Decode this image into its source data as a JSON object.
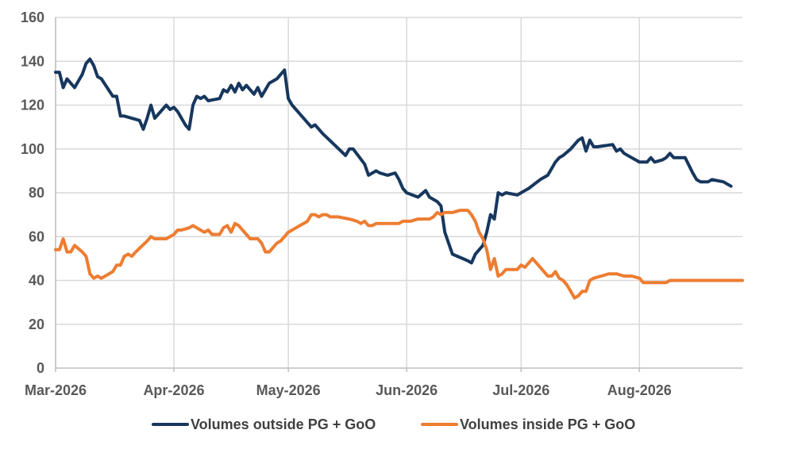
{
  "chart_data": {
    "type": "line",
    "title": "",
    "xlabel": "",
    "ylabel": "",
    "ylim": [
      0,
      160
    ],
    "yticks": [
      0,
      20,
      40,
      60,
      80,
      100,
      120,
      140,
      160
    ],
    "xlim": [
      "2026-03-01",
      "2026-08-28"
    ],
    "xticks": [
      {
        "date": "2026-03-01",
        "label": "Mar-2026"
      },
      {
        "date": "2026-04-01",
        "label": "Apr-2026"
      },
      {
        "date": "2026-05-01",
        "label": "May-2026"
      },
      {
        "date": "2026-06-01",
        "label": "Jun-2026"
      },
      {
        "date": "2026-07-01",
        "label": "Jul-2026"
      },
      {
        "date": "2026-08-01",
        "label": "Aug-2026"
      }
    ],
    "grid": true,
    "legend_position": "bottom",
    "series": [
      {
        "name": "Volumes outside PG + GoO",
        "color": "#17375e",
        "points": [
          [
            "2026-03-01",
            135
          ],
          [
            "2026-03-02",
            135
          ],
          [
            "2026-03-03",
            128
          ],
          [
            "2026-03-04",
            132
          ],
          [
            "2026-03-06",
            128
          ],
          [
            "2026-03-08",
            134
          ],
          [
            "2026-03-09",
            139
          ],
          [
            "2026-03-10",
            141
          ],
          [
            "2026-03-11",
            138
          ],
          [
            "2026-03-12",
            133
          ],
          [
            "2026-03-13",
            132
          ],
          [
            "2026-03-16",
            124
          ],
          [
            "2026-03-17",
            124
          ],
          [
            "2026-03-18",
            115
          ],
          [
            "2026-03-19",
            115
          ],
          [
            "2026-03-23",
            113
          ],
          [
            "2026-03-24",
            109
          ],
          [
            "2026-03-25",
            114
          ],
          [
            "2026-03-26",
            120
          ],
          [
            "2026-03-27",
            114
          ],
          [
            "2026-03-30",
            120
          ],
          [
            "2026-03-31",
            118
          ],
          [
            "2026-04-01",
            119
          ],
          [
            "2026-04-02",
            117
          ],
          [
            "2026-04-04",
            111
          ],
          [
            "2026-04-05",
            109
          ],
          [
            "2026-04-06",
            120
          ],
          [
            "2026-04-07",
            124
          ],
          [
            "2026-04-08",
            123
          ],
          [
            "2026-04-09",
            124
          ],
          [
            "2026-04-10",
            122
          ],
          [
            "2026-04-13",
            123
          ],
          [
            "2026-04-14",
            127
          ],
          [
            "2026-04-15",
            126
          ],
          [
            "2026-04-16",
            129
          ],
          [
            "2026-04-17",
            126
          ],
          [
            "2026-04-18",
            130
          ],
          [
            "2026-04-19",
            127
          ],
          [
            "2026-04-20",
            129
          ],
          [
            "2026-04-21",
            127
          ],
          [
            "2026-04-22",
            125
          ],
          [
            "2026-04-23",
            128
          ],
          [
            "2026-04-24",
            124
          ],
          [
            "2026-04-26",
            130
          ],
          [
            "2026-04-28",
            132
          ],
          [
            "2026-04-29",
            134
          ],
          [
            "2026-04-30",
            136
          ],
          [
            "2026-05-01",
            123
          ],
          [
            "2026-05-02",
            120
          ],
          [
            "2026-05-05",
            114
          ],
          [
            "2026-05-07",
            110
          ],
          [
            "2026-05-08",
            111
          ],
          [
            "2026-05-10",
            107
          ],
          [
            "2026-05-13",
            102
          ],
          [
            "2026-05-16",
            97
          ],
          [
            "2026-05-17",
            100
          ],
          [
            "2026-05-18",
            100
          ],
          [
            "2026-05-21",
            93
          ],
          [
            "2026-05-22",
            88
          ],
          [
            "2026-05-24",
            90
          ],
          [
            "2026-05-25",
            89
          ],
          [
            "2026-05-27",
            88
          ],
          [
            "2026-05-29",
            89
          ],
          [
            "2026-05-30",
            86
          ],
          [
            "2026-05-31",
            82
          ],
          [
            "2026-06-01",
            80
          ],
          [
            "2026-06-04",
            78
          ],
          [
            "2026-06-06",
            81
          ],
          [
            "2026-06-07",
            78
          ],
          [
            "2026-06-09",
            76
          ],
          [
            "2026-06-10",
            74
          ],
          [
            "2026-06-11",
            62
          ],
          [
            "2026-06-12",
            57
          ],
          [
            "2026-06-13",
            52
          ],
          [
            "2026-06-17",
            49
          ],
          [
            "2026-06-18",
            48
          ],
          [
            "2026-06-19",
            52
          ],
          [
            "2026-06-21",
            56
          ],
          [
            "2026-06-22",
            62
          ],
          [
            "2026-06-23",
            70
          ],
          [
            "2026-06-24",
            68
          ],
          [
            "2026-06-25",
            80
          ],
          [
            "2026-06-26",
            79
          ],
          [
            "2026-06-27",
            80
          ],
          [
            "2026-06-30",
            79
          ],
          [
            "2026-07-01",
            80
          ],
          [
            "2026-07-02",
            81
          ],
          [
            "2026-07-03",
            82
          ],
          [
            "2026-07-06",
            86
          ],
          [
            "2026-07-08",
            88
          ],
          [
            "2026-07-10",
            94
          ],
          [
            "2026-07-11",
            96
          ],
          [
            "2026-07-12",
            97
          ],
          [
            "2026-07-14",
            100
          ],
          [
            "2026-07-15",
            102
          ],
          [
            "2026-07-16",
            104
          ],
          [
            "2026-07-17",
            105
          ],
          [
            "2026-07-18",
            99
          ],
          [
            "2026-07-19",
            104
          ],
          [
            "2026-07-20",
            101
          ],
          [
            "2026-07-21",
            101
          ],
          [
            "2026-07-25",
            102
          ],
          [
            "2026-07-26",
            99
          ],
          [
            "2026-07-27",
            100
          ],
          [
            "2026-07-28",
            98
          ],
          [
            "2026-07-30",
            96
          ],
          [
            "2026-08-01",
            94
          ],
          [
            "2026-08-03",
            94
          ],
          [
            "2026-08-04",
            96
          ],
          [
            "2026-08-05",
            94
          ],
          [
            "2026-08-07",
            95
          ],
          [
            "2026-08-08",
            96
          ],
          [
            "2026-08-09",
            98
          ],
          [
            "2026-08-10",
            96
          ],
          [
            "2026-08-13",
            96
          ],
          [
            "2026-08-15",
            89
          ],
          [
            "2026-08-16",
            86
          ],
          [
            "2026-08-17",
            85
          ],
          [
            "2026-08-18",
            85
          ],
          [
            "2026-08-19",
            85
          ],
          [
            "2026-08-20",
            86
          ],
          [
            "2026-08-23",
            85
          ],
          [
            "2026-08-25",
            83
          ]
        ]
      },
      {
        "name": "Volumes inside PG + GoO",
        "color": "#ed7d31",
        "points": [
          [
            "2026-03-01",
            54
          ],
          [
            "2026-03-02",
            54
          ],
          [
            "2026-03-03",
            59
          ],
          [
            "2026-03-04",
            53
          ],
          [
            "2026-03-05",
            53
          ],
          [
            "2026-03-06",
            56
          ],
          [
            "2026-03-08",
            53
          ],
          [
            "2026-03-09",
            51
          ],
          [
            "2026-03-10",
            43
          ],
          [
            "2026-03-11",
            41
          ],
          [
            "2026-03-12",
            42
          ],
          [
            "2026-03-13",
            41
          ],
          [
            "2026-03-14",
            42
          ],
          [
            "2026-03-16",
            44
          ],
          [
            "2026-03-17",
            47
          ],
          [
            "2026-03-18",
            47
          ],
          [
            "2026-03-19",
            51
          ],
          [
            "2026-03-20",
            52
          ],
          [
            "2026-03-21",
            51
          ],
          [
            "2026-03-22",
            53
          ],
          [
            "2026-03-25",
            58
          ],
          [
            "2026-03-26",
            60
          ],
          [
            "2026-03-27",
            59
          ],
          [
            "2026-03-30",
            59
          ],
          [
            "2026-03-31",
            60
          ],
          [
            "2026-04-01",
            61
          ],
          [
            "2026-04-02",
            63
          ],
          [
            "2026-04-03",
            63
          ],
          [
            "2026-04-05",
            64
          ],
          [
            "2026-04-06",
            65
          ],
          [
            "2026-04-07",
            64
          ],
          [
            "2026-04-08",
            63
          ],
          [
            "2026-04-09",
            62
          ],
          [
            "2026-04-10",
            63
          ],
          [
            "2026-04-11",
            61
          ],
          [
            "2026-04-13",
            61
          ],
          [
            "2026-04-14",
            64
          ],
          [
            "2026-04-15",
            65
          ],
          [
            "2026-04-16",
            62
          ],
          [
            "2026-04-17",
            66
          ],
          [
            "2026-04-18",
            65
          ],
          [
            "2026-04-19",
            63
          ],
          [
            "2026-04-20",
            61
          ],
          [
            "2026-04-21",
            59
          ],
          [
            "2026-04-23",
            59
          ],
          [
            "2026-04-24",
            57
          ],
          [
            "2026-04-25",
            53
          ],
          [
            "2026-04-26",
            53
          ],
          [
            "2026-04-28",
            57
          ],
          [
            "2026-04-29",
            58
          ],
          [
            "2026-05-01",
            62
          ],
          [
            "2026-05-02",
            63
          ],
          [
            "2026-05-03",
            64
          ],
          [
            "2026-05-04",
            65
          ],
          [
            "2026-05-05",
            66
          ],
          [
            "2026-05-06",
            67
          ],
          [
            "2026-05-07",
            70
          ],
          [
            "2026-05-08",
            70
          ],
          [
            "2026-05-09",
            69
          ],
          [
            "2026-05-10",
            70
          ],
          [
            "2026-05-11",
            70
          ],
          [
            "2026-05-12",
            69
          ],
          [
            "2026-05-14",
            69
          ],
          [
            "2026-05-17",
            68
          ],
          [
            "2026-05-19",
            67
          ],
          [
            "2026-05-20",
            66
          ],
          [
            "2026-05-21",
            67
          ],
          [
            "2026-05-22",
            65
          ],
          [
            "2026-05-23",
            65
          ],
          [
            "2026-05-24",
            66
          ],
          [
            "2026-05-26",
            66
          ],
          [
            "2026-05-28",
            66
          ],
          [
            "2026-05-30",
            66
          ],
          [
            "2026-05-31",
            67
          ],
          [
            "2026-06-02",
            67
          ],
          [
            "2026-06-04",
            68
          ],
          [
            "2026-06-07",
            68
          ],
          [
            "2026-06-08",
            69
          ],
          [
            "2026-06-09",
            71
          ],
          [
            "2026-06-10",
            70
          ],
          [
            "2026-06-11",
            71
          ],
          [
            "2026-06-13",
            71
          ],
          [
            "2026-06-15",
            72
          ],
          [
            "2026-06-17",
            72
          ],
          [
            "2026-06-18",
            70
          ],
          [
            "2026-06-19",
            67
          ],
          [
            "2026-06-20",
            62
          ],
          [
            "2026-06-21",
            59
          ],
          [
            "2026-06-22",
            54
          ],
          [
            "2026-06-23",
            45
          ],
          [
            "2026-06-24",
            50
          ],
          [
            "2026-06-25",
            42
          ],
          [
            "2026-06-26",
            43
          ],
          [
            "2026-06-27",
            45
          ],
          [
            "2026-06-28",
            45
          ],
          [
            "2026-06-30",
            45
          ],
          [
            "2026-07-01",
            47
          ],
          [
            "2026-07-02",
            46
          ],
          [
            "2026-07-03",
            48
          ],
          [
            "2026-07-04",
            50
          ],
          [
            "2026-07-05",
            48
          ],
          [
            "2026-07-06",
            46
          ],
          [
            "2026-07-07",
            44
          ],
          [
            "2026-07-08",
            42
          ],
          [
            "2026-07-09",
            42
          ],
          [
            "2026-07-10",
            44
          ],
          [
            "2026-07-11",
            41
          ],
          [
            "2026-07-12",
            40
          ],
          [
            "2026-07-13",
            38
          ],
          [
            "2026-07-14",
            35
          ],
          [
            "2026-07-15",
            32
          ],
          [
            "2026-07-16",
            33
          ],
          [
            "2026-07-17",
            35
          ],
          [
            "2026-07-18",
            35
          ],
          [
            "2026-07-19",
            40
          ],
          [
            "2026-07-20",
            41
          ],
          [
            "2026-07-22",
            42
          ],
          [
            "2026-07-24",
            43
          ],
          [
            "2026-07-26",
            43
          ],
          [
            "2026-07-28",
            42
          ],
          [
            "2026-07-30",
            42
          ],
          [
            "2026-08-01",
            41
          ],
          [
            "2026-08-02",
            39
          ],
          [
            "2026-08-03",
            39
          ],
          [
            "2026-08-06",
            39
          ],
          [
            "2026-08-08",
            39
          ],
          [
            "2026-08-09",
            40
          ],
          [
            "2026-08-12",
            40
          ],
          [
            "2026-08-15",
            40
          ],
          [
            "2026-08-20",
            40
          ],
          [
            "2026-08-25",
            40
          ],
          [
            "2026-08-28",
            40
          ]
        ]
      }
    ]
  }
}
